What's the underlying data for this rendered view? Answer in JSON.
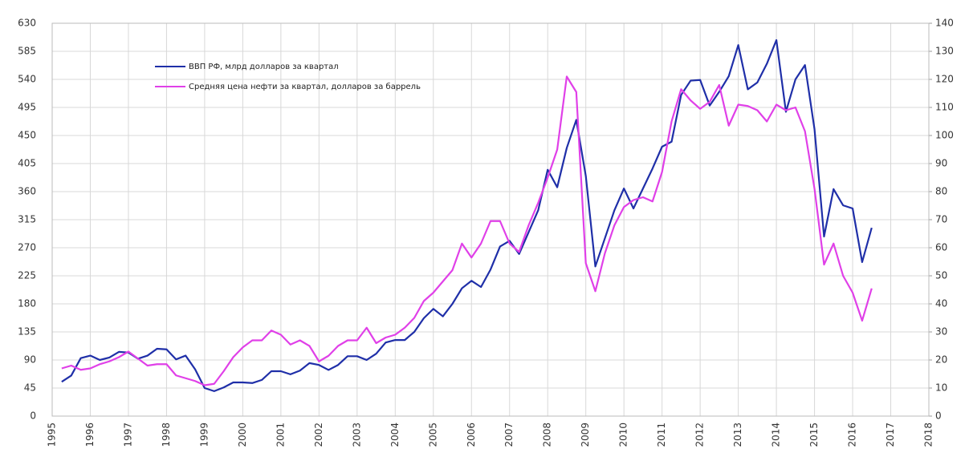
{
  "chart_data": {
    "type": "line",
    "x": [
      1995.25,
      1995.5,
      1995.75,
      1996,
      1996.25,
      1996.5,
      1996.75,
      1997,
      1997.25,
      1997.5,
      1997.75,
      1998,
      1998.25,
      1998.5,
      1998.75,
      1999,
      1999.25,
      1999.5,
      1999.75,
      2000,
      2000.25,
      2000.5,
      2000.75,
      2001,
      2001.25,
      2001.5,
      2001.75,
      2002,
      2002.25,
      2002.5,
      2002.75,
      2003,
      2003.25,
      2003.5,
      2003.75,
      2004,
      2004.25,
      2004.5,
      2004.75,
      2005,
      2005.25,
      2005.5,
      2005.75,
      2006,
      2006.25,
      2006.5,
      2006.75,
      2007,
      2007.25,
      2007.5,
      2007.75,
      2008,
      2008.25,
      2008.5,
      2008.75,
      2009,
      2009.25,
      2009.5,
      2009.75,
      2010,
      2010.25,
      2010.5,
      2010.75,
      2011,
      2011.25,
      2011.5,
      2011.75,
      2012,
      2012.25,
      2012.5,
      2012.75,
      2013,
      2013.25,
      2013.5,
      2013.75,
      2014,
      2014.25,
      2014.5,
      2014.75,
      2015,
      2015.25,
      2015.5,
      2015.75,
      2016,
      2016.25,
      2016.5
    ],
    "series": [
      {
        "name": "ВВП РФ, млрд долларов за квартал",
        "color": "#1f2fa8",
        "values": [
          55,
          65,
          93,
          97,
          90,
          94,
          103,
          102,
          92,
          97,
          108,
          107,
          91,
          97,
          75,
          45,
          40,
          46,
          54,
          54,
          53,
          58,
          72,
          72,
          67,
          73,
          85,
          82,
          74,
          82,
          96,
          96,
          90,
          100,
          118,
          122,
          122,
          135,
          157,
          172,
          160,
          180,
          205,
          217,
          207,
          235,
          272,
          281,
          260,
          295,
          330,
          395,
          367,
          430,
          475,
          385,
          240,
          285,
          330,
          365,
          333,
          365,
          397,
          432,
          440,
          515,
          538,
          539,
          498,
          520,
          545,
          595,
          524,
          535,
          565,
          603,
          488,
          540,
          563,
          460,
          288,
          364,
          338,
          333,
          247,
          302
        ]
      },
      {
        "name": "Средняя цена нефти за квартал, долларов за баррель",
        "color": "#e040e8",
        "axis": "y2",
        "values": [
          17,
          18,
          16.5,
          17,
          18.5,
          19.5,
          21,
          23,
          20.5,
          18,
          18.5,
          18.5,
          14.5,
          13.5,
          12.5,
          11,
          11.5,
          16,
          21,
          24.5,
          27,
          27,
          30.5,
          29,
          25.5,
          27,
          25,
          19.5,
          21.5,
          25,
          27,
          27,
          31.5,
          26,
          28,
          29,
          31.5,
          35,
          41,
          44,
          48,
          52,
          61.5,
          56.5,
          61.5,
          69.5,
          69.5,
          61.5,
          58.5,
          68,
          76,
          85,
          95,
          121,
          115.5,
          54.5,
          44.5,
          58,
          68,
          74.5,
          77,
          78,
          76.5,
          87,
          105,
          116.5,
          112.5,
          109.5,
          112,
          118,
          103.5,
          111,
          110.5,
          109,
          105,
          111,
          109,
          110,
          101.5,
          81,
          54,
          61.5,
          50,
          44,
          34,
          45.5
        ]
      }
    ],
    "xlim": [
      1995,
      2018
    ],
    "xticks": [
      1995,
      1996,
      1997,
      1998,
      1999,
      2000,
      2001,
      2002,
      2003,
      2004,
      2005,
      2006,
      2007,
      2008,
      2009,
      2010,
      2011,
      2012,
      2013,
      2014,
      2015,
      2016,
      2017,
      2018
    ],
    "ylim": [
      0,
      630
    ],
    "yticks": [
      0,
      45,
      90,
      135,
      180,
      225,
      270,
      315,
      360,
      405,
      450,
      495,
      540,
      585,
      630
    ],
    "y2lim": [
      0,
      140
    ],
    "y2ticks": [
      0,
      10,
      20,
      30,
      40,
      50,
      60,
      70,
      80,
      90,
      100,
      110,
      120,
      130,
      140
    ],
    "grid": true,
    "legend": "upper left"
  }
}
